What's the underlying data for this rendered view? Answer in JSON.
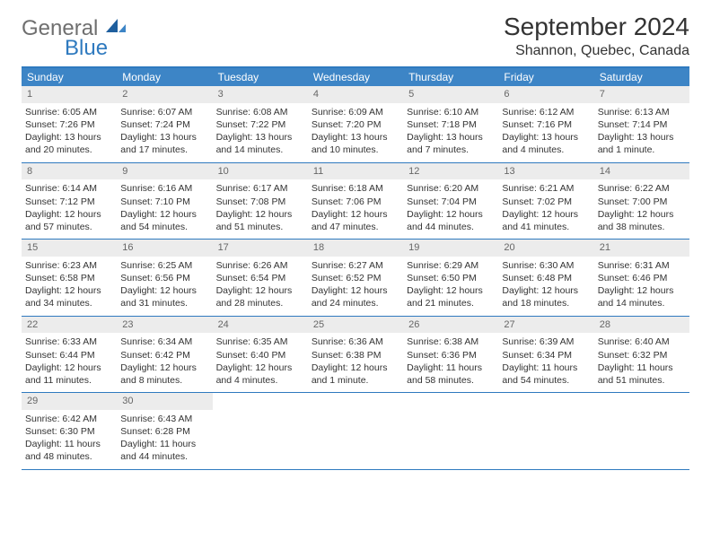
{
  "brand": {
    "general": "General",
    "blue": "Blue"
  },
  "header": {
    "month_title": "September 2024",
    "location": "Shannon, Quebec, Canada"
  },
  "colors": {
    "header_bg": "#3d85c6",
    "header_border": "#2f7abf",
    "daynum_bg": "#ececec",
    "text": "#333333",
    "logo_gray": "#6f6f6f",
    "logo_blue": "#2f7abf"
  },
  "typography": {
    "month_title_size_pt": 21,
    "location_size_pt": 12,
    "day_header_size_pt": 9,
    "body_size_pt": 8
  },
  "day_headers": [
    "Sunday",
    "Monday",
    "Tuesday",
    "Wednesday",
    "Thursday",
    "Friday",
    "Saturday"
  ],
  "weeks": [
    [
      {
        "n": "1",
        "sr": "Sunrise: 6:05 AM",
        "ss": "Sunset: 7:26 PM",
        "d1": "Daylight: 13 hours",
        "d2": "and 20 minutes."
      },
      {
        "n": "2",
        "sr": "Sunrise: 6:07 AM",
        "ss": "Sunset: 7:24 PM",
        "d1": "Daylight: 13 hours",
        "d2": "and 17 minutes."
      },
      {
        "n": "3",
        "sr": "Sunrise: 6:08 AM",
        "ss": "Sunset: 7:22 PM",
        "d1": "Daylight: 13 hours",
        "d2": "and 14 minutes."
      },
      {
        "n": "4",
        "sr": "Sunrise: 6:09 AM",
        "ss": "Sunset: 7:20 PM",
        "d1": "Daylight: 13 hours",
        "d2": "and 10 minutes."
      },
      {
        "n": "5",
        "sr": "Sunrise: 6:10 AM",
        "ss": "Sunset: 7:18 PM",
        "d1": "Daylight: 13 hours",
        "d2": "and 7 minutes."
      },
      {
        "n": "6",
        "sr": "Sunrise: 6:12 AM",
        "ss": "Sunset: 7:16 PM",
        "d1": "Daylight: 13 hours",
        "d2": "and 4 minutes."
      },
      {
        "n": "7",
        "sr": "Sunrise: 6:13 AM",
        "ss": "Sunset: 7:14 PM",
        "d1": "Daylight: 13 hours",
        "d2": "and 1 minute."
      }
    ],
    [
      {
        "n": "8",
        "sr": "Sunrise: 6:14 AM",
        "ss": "Sunset: 7:12 PM",
        "d1": "Daylight: 12 hours",
        "d2": "and 57 minutes."
      },
      {
        "n": "9",
        "sr": "Sunrise: 6:16 AM",
        "ss": "Sunset: 7:10 PM",
        "d1": "Daylight: 12 hours",
        "d2": "and 54 minutes."
      },
      {
        "n": "10",
        "sr": "Sunrise: 6:17 AM",
        "ss": "Sunset: 7:08 PM",
        "d1": "Daylight: 12 hours",
        "d2": "and 51 minutes."
      },
      {
        "n": "11",
        "sr": "Sunrise: 6:18 AM",
        "ss": "Sunset: 7:06 PM",
        "d1": "Daylight: 12 hours",
        "d2": "and 47 minutes."
      },
      {
        "n": "12",
        "sr": "Sunrise: 6:20 AM",
        "ss": "Sunset: 7:04 PM",
        "d1": "Daylight: 12 hours",
        "d2": "and 44 minutes."
      },
      {
        "n": "13",
        "sr": "Sunrise: 6:21 AM",
        "ss": "Sunset: 7:02 PM",
        "d1": "Daylight: 12 hours",
        "d2": "and 41 minutes."
      },
      {
        "n": "14",
        "sr": "Sunrise: 6:22 AM",
        "ss": "Sunset: 7:00 PM",
        "d1": "Daylight: 12 hours",
        "d2": "and 38 minutes."
      }
    ],
    [
      {
        "n": "15",
        "sr": "Sunrise: 6:23 AM",
        "ss": "Sunset: 6:58 PM",
        "d1": "Daylight: 12 hours",
        "d2": "and 34 minutes."
      },
      {
        "n": "16",
        "sr": "Sunrise: 6:25 AM",
        "ss": "Sunset: 6:56 PM",
        "d1": "Daylight: 12 hours",
        "d2": "and 31 minutes."
      },
      {
        "n": "17",
        "sr": "Sunrise: 6:26 AM",
        "ss": "Sunset: 6:54 PM",
        "d1": "Daylight: 12 hours",
        "d2": "and 28 minutes."
      },
      {
        "n": "18",
        "sr": "Sunrise: 6:27 AM",
        "ss": "Sunset: 6:52 PM",
        "d1": "Daylight: 12 hours",
        "d2": "and 24 minutes."
      },
      {
        "n": "19",
        "sr": "Sunrise: 6:29 AM",
        "ss": "Sunset: 6:50 PM",
        "d1": "Daylight: 12 hours",
        "d2": "and 21 minutes."
      },
      {
        "n": "20",
        "sr": "Sunrise: 6:30 AM",
        "ss": "Sunset: 6:48 PM",
        "d1": "Daylight: 12 hours",
        "d2": "and 18 minutes."
      },
      {
        "n": "21",
        "sr": "Sunrise: 6:31 AM",
        "ss": "Sunset: 6:46 PM",
        "d1": "Daylight: 12 hours",
        "d2": "and 14 minutes."
      }
    ],
    [
      {
        "n": "22",
        "sr": "Sunrise: 6:33 AM",
        "ss": "Sunset: 6:44 PM",
        "d1": "Daylight: 12 hours",
        "d2": "and 11 minutes."
      },
      {
        "n": "23",
        "sr": "Sunrise: 6:34 AM",
        "ss": "Sunset: 6:42 PM",
        "d1": "Daylight: 12 hours",
        "d2": "and 8 minutes."
      },
      {
        "n": "24",
        "sr": "Sunrise: 6:35 AM",
        "ss": "Sunset: 6:40 PM",
        "d1": "Daylight: 12 hours",
        "d2": "and 4 minutes."
      },
      {
        "n": "25",
        "sr": "Sunrise: 6:36 AM",
        "ss": "Sunset: 6:38 PM",
        "d1": "Daylight: 12 hours",
        "d2": "and 1 minute."
      },
      {
        "n": "26",
        "sr": "Sunrise: 6:38 AM",
        "ss": "Sunset: 6:36 PM",
        "d1": "Daylight: 11 hours",
        "d2": "and 58 minutes."
      },
      {
        "n": "27",
        "sr": "Sunrise: 6:39 AM",
        "ss": "Sunset: 6:34 PM",
        "d1": "Daylight: 11 hours",
        "d2": "and 54 minutes."
      },
      {
        "n": "28",
        "sr": "Sunrise: 6:40 AM",
        "ss": "Sunset: 6:32 PM",
        "d1": "Daylight: 11 hours",
        "d2": "and 51 minutes."
      }
    ],
    [
      {
        "n": "29",
        "sr": "Sunrise: 6:42 AM",
        "ss": "Sunset: 6:30 PM",
        "d1": "Daylight: 11 hours",
        "d2": "and 48 minutes."
      },
      {
        "n": "30",
        "sr": "Sunrise: 6:43 AM",
        "ss": "Sunset: 6:28 PM",
        "d1": "Daylight: 11 hours",
        "d2": "and 44 minutes."
      },
      null,
      null,
      null,
      null,
      null
    ]
  ]
}
